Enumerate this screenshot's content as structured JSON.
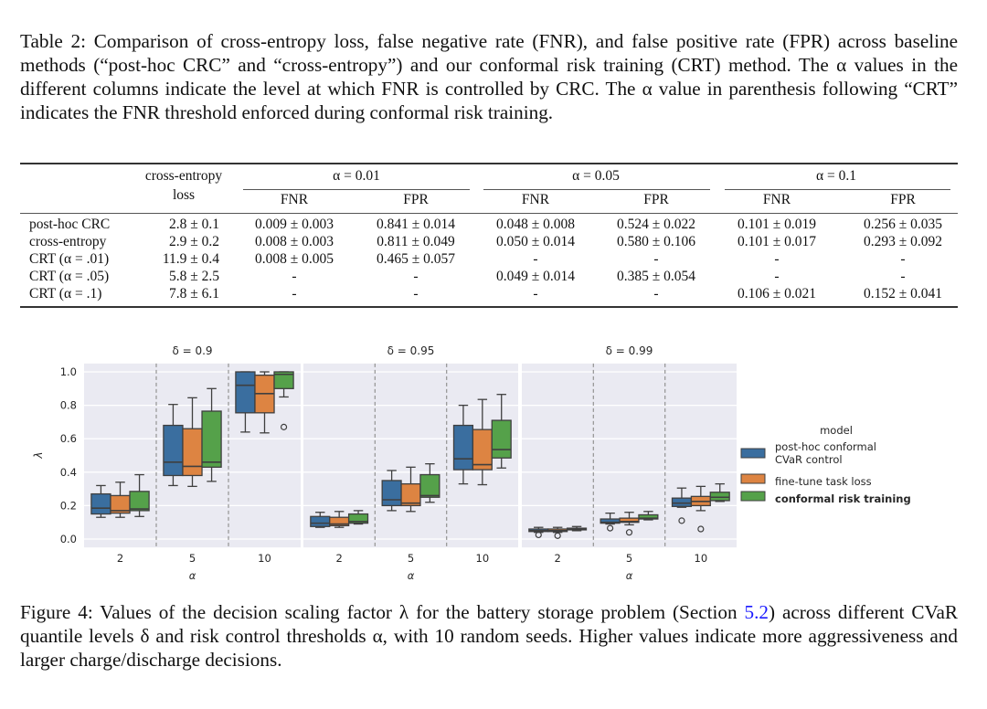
{
  "table": {
    "caption": "Table 2: Comparison of cross-entropy loss, false negative rate (FNR), and false positive rate (FPR) across baseline methods (“post-hoc CRC” and “cross-entropy”) and our conformal risk training (CRT) method. The α values in the different columns indicate the level at which FNR is controlled by CRC. The α value in parenthesis following “CRT” indicates the FNR threshold enforced during conformal risk training.",
    "header": {
      "loss_line1": "cross-entropy",
      "loss_line2": "loss",
      "groups": [
        "α = 0.01",
        "α = 0.05",
        "α = 0.1"
      ],
      "subcols": [
        "FNR",
        "FPR",
        "FNR",
        "FPR",
        "FNR",
        "FPR"
      ]
    },
    "rows": [
      {
        "method": "post-hoc CRC",
        "loss": "2.8 ± 0.1",
        "cells": [
          "0.009 ± 0.003",
          "0.841 ± 0.014",
          "0.048 ± 0.008",
          "0.524 ± 0.022",
          "0.101 ± 0.019",
          "0.256 ± 0.035"
        ]
      },
      {
        "method": "cross-entropy",
        "loss": "2.9 ± 0.2",
        "cells": [
          "0.008 ± 0.003",
          "0.811 ± 0.049",
          "0.050 ± 0.014",
          "0.580 ± 0.106",
          "0.101 ± 0.017",
          "0.293 ± 0.092"
        ]
      },
      {
        "method": "CRT (α = .01)",
        "loss": "11.9 ± 0.4",
        "cells": [
          "0.008 ± 0.005",
          "0.465 ± 0.057",
          "-",
          "-",
          "-",
          "-"
        ]
      },
      {
        "method": "CRT (α = .05)",
        "loss": "5.8 ± 2.5",
        "cells": [
          "-",
          "-",
          "0.049 ± 0.014",
          "0.385 ± 0.054",
          "-",
          "-"
        ]
      },
      {
        "method": "CRT (α = .1)",
        "loss": "7.8 ± 6.1",
        "cells": [
          "-",
          "-",
          "-",
          "-",
          "0.106 ± 0.021",
          "0.152 ± 0.041"
        ]
      }
    ]
  },
  "figure": {
    "caption_prefix": "Figure 4: Values of the decision scaling factor λ for the battery storage problem (Section ",
    "caption_link": "5.2",
    "caption_suffix": ") across different CVaR quantile levels δ and risk control thresholds α, with 10 random seeds. Higher values indicate more aggressiveness and larger charge/discharge decisions."
  },
  "chart_data": {
    "type": "box",
    "ylabel": "λ",
    "xlabel": "α",
    "ylim": [
      -0.05,
      1.05
    ],
    "yticks": [
      0.0,
      0.2,
      0.4,
      0.6,
      0.8,
      1.0
    ],
    "ytick_labels": [
      "0.0",
      "0.2",
      "0.4",
      "0.6",
      "0.8",
      "1.0"
    ],
    "categories": [
      "2",
      "5",
      "10"
    ],
    "grid": true,
    "legend": {
      "title": "model",
      "placement": "right",
      "entries": [
        {
          "label_lines": [
            "post-hoc conformal",
            "CVaR control"
          ],
          "color": "#3a6e9f",
          "bold": false
        },
        {
          "label_lines": [
            "fine-tune task loss"
          ],
          "color": "#dd8442",
          "bold": false
        },
        {
          "label_lines": [
            "conformal risk training"
          ],
          "color": "#55a14a",
          "bold": true
        }
      ]
    },
    "panels": [
      {
        "title": "δ = 0.9",
        "groups": [
          {
            "alpha": "2",
            "boxes": [
              {
                "whislo": 0.13,
                "q1": 0.15,
                "med": 0.185,
                "q3": 0.27,
                "whishi": 0.32,
                "fliers": []
              },
              {
                "whislo": 0.13,
                "q1": 0.155,
                "med": 0.17,
                "q3": 0.26,
                "whishi": 0.34,
                "fliers": []
              },
              {
                "whislo": 0.135,
                "q1": 0.17,
                "med": 0.18,
                "q3": 0.285,
                "whishi": 0.385,
                "fliers": []
              }
            ]
          },
          {
            "alpha": "5",
            "boxes": [
              {
                "whislo": 0.32,
                "q1": 0.38,
                "med": 0.46,
                "q3": 0.68,
                "whishi": 0.805,
                "fliers": []
              },
              {
                "whislo": 0.315,
                "q1": 0.38,
                "med": 0.435,
                "q3": 0.66,
                "whishi": 0.845,
                "fliers": []
              },
              {
                "whislo": 0.345,
                "q1": 0.43,
                "med": 0.46,
                "q3": 0.765,
                "whishi": 0.9,
                "fliers": []
              }
            ]
          },
          {
            "alpha": "10",
            "boxes": [
              {
                "whislo": 0.64,
                "q1": 0.755,
                "med": 0.92,
                "q3": 1.0,
                "whishi": 1.0,
                "fliers": []
              },
              {
                "whislo": 0.635,
                "q1": 0.755,
                "med": 0.87,
                "q3": 0.98,
                "whishi": 1.0,
                "fliers": []
              },
              {
                "whislo": 0.85,
                "q1": 0.9,
                "med": 0.985,
                "q3": 1.0,
                "whishi": 1.0,
                "fliers": [
                  0.67
                ]
              }
            ]
          }
        ]
      },
      {
        "title": "δ = 0.95",
        "groups": [
          {
            "alpha": "2",
            "boxes": [
              {
                "whislo": 0.07,
                "q1": 0.075,
                "med": 0.095,
                "q3": 0.135,
                "whishi": 0.16,
                "fliers": []
              },
              {
                "whislo": 0.07,
                "q1": 0.08,
                "med": 0.09,
                "q3": 0.13,
                "whishi": 0.165,
                "fliers": []
              },
              {
                "whislo": 0.09,
                "q1": 0.095,
                "med": 0.105,
                "q3": 0.15,
                "whishi": 0.17,
                "fliers": []
              }
            ]
          },
          {
            "alpha": "5",
            "boxes": [
              {
                "whislo": 0.17,
                "q1": 0.2,
                "med": 0.235,
                "q3": 0.35,
                "whishi": 0.41,
                "fliers": []
              },
              {
                "whislo": 0.165,
                "q1": 0.2,
                "med": 0.215,
                "q3": 0.33,
                "whishi": 0.43,
                "fliers": []
              },
              {
                "whislo": 0.22,
                "q1": 0.25,
                "med": 0.26,
                "q3": 0.385,
                "whishi": 0.45,
                "fliers": []
              }
            ]
          },
          {
            "alpha": "10",
            "boxes": [
              {
                "whislo": 0.33,
                "q1": 0.415,
                "med": 0.48,
                "q3": 0.68,
                "whishi": 0.8,
                "fliers": []
              },
              {
                "whislo": 0.325,
                "q1": 0.415,
                "med": 0.445,
                "q3": 0.655,
                "whishi": 0.835,
                "fliers": []
              },
              {
                "whislo": 0.425,
                "q1": 0.485,
                "med": 0.535,
                "q3": 0.71,
                "whishi": 0.865,
                "fliers": []
              }
            ]
          }
        ]
      },
      {
        "title": "δ = 0.99",
        "groups": [
          {
            "alpha": "2",
            "boxes": [
              {
                "whislo": 0.04,
                "q1": 0.045,
                "med": 0.05,
                "q3": 0.06,
                "whishi": 0.07,
                "fliers": [
                  0.025
                ]
              },
              {
                "whislo": 0.04,
                "q1": 0.045,
                "med": 0.05,
                "q3": 0.06,
                "whishi": 0.07,
                "fliers": [
                  0.02
                ]
              },
              {
                "whislo": 0.05,
                "q1": 0.055,
                "med": 0.06,
                "q3": 0.065,
                "whishi": 0.075,
                "fliers": []
              }
            ]
          },
          {
            "alpha": "5",
            "boxes": [
              {
                "whislo": 0.09,
                "q1": 0.095,
                "med": 0.1,
                "q3": 0.12,
                "whishi": 0.155,
                "fliers": [
                  0.065
                ]
              },
              {
                "whislo": 0.085,
                "q1": 0.1,
                "med": 0.105,
                "q3": 0.125,
                "whishi": 0.16,
                "fliers": [
                  0.04
                ]
              },
              {
                "whislo": 0.115,
                "q1": 0.12,
                "med": 0.125,
                "q3": 0.145,
                "whishi": 0.165,
                "fliers": []
              }
            ]
          },
          {
            "alpha": "10",
            "boxes": [
              {
                "whislo": 0.19,
                "q1": 0.195,
                "med": 0.215,
                "q3": 0.245,
                "whishi": 0.305,
                "fliers": [
                  0.11
                ]
              },
              {
                "whislo": 0.17,
                "q1": 0.2,
                "med": 0.225,
                "q3": 0.255,
                "whishi": 0.315,
                "fliers": [
                  0.06
                ]
              },
              {
                "whislo": 0.225,
                "q1": 0.23,
                "med": 0.25,
                "q3": 0.28,
                "whishi": 0.33,
                "fliers": []
              }
            ]
          }
        ]
      }
    ]
  }
}
